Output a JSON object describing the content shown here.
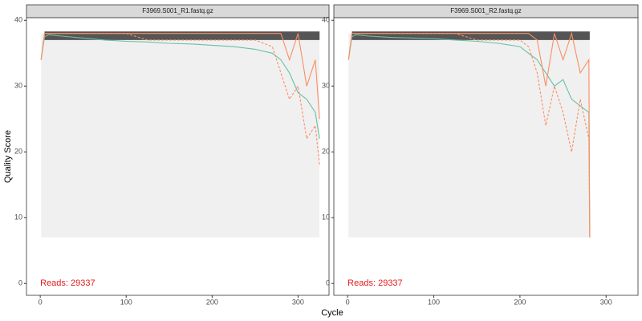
{
  "chart_data": [
    {
      "type": "line",
      "title": "F3969.S001_R1.fastq.gz",
      "xlabel": "Cycle",
      "ylabel": "Quality Score",
      "x": [
        1,
        5,
        10,
        25,
        50,
        75,
        100,
        125,
        150,
        175,
        200,
        225,
        250,
        270,
        280,
        290,
        300,
        310,
        320,
        325
      ],
      "series": [
        {
          "color": "#66c2a5",
          "dash": false,
          "values": [
            34,
            37.5,
            37.8,
            37.6,
            37.3,
            37,
            36.8,
            36.7,
            36.5,
            36.4,
            36.2,
            36,
            35.6,
            35,
            34,
            32,
            29,
            28,
            26,
            22
          ]
        },
        {
          "color": "#fc8d62",
          "dash": false,
          "values": [
            34,
            38,
            38,
            38,
            38,
            38,
            38,
            38,
            38,
            38,
            38,
            38,
            38,
            38,
            38,
            34,
            38,
            30,
            34,
            25
          ]
        },
        {
          "color": "#fc8d62",
          "dash": true,
          "values": [
            34,
            38,
            38,
            38,
            38,
            38,
            38,
            37,
            37,
            37,
            37,
            37,
            37,
            36,
            32,
            28,
            30,
            22,
            24,
            18
          ]
        }
      ],
      "annotation": "Reads:  29337",
      "annotation_color": "#e41a1c",
      "xlim": [
        -16,
        336
      ],
      "ylim": [
        -1.8,
        40.4
      ],
      "xticks": [
        0,
        100,
        200,
        300
      ],
      "yticks": [
        0,
        10,
        20,
        30,
        40
      ]
    },
    {
      "type": "line",
      "title": "F3969.S001_R2.fastq.gz",
      "x": [
        1,
        5,
        10,
        25,
        50,
        75,
        100,
        125,
        150,
        175,
        200,
        210,
        220,
        230,
        240,
        250,
        260,
        270,
        280,
        281
      ],
      "series": [
        {
          "color": "#66c2a5",
          "dash": false,
          "values": [
            34,
            37.5,
            37.8,
            37.6,
            37.4,
            37.3,
            37.2,
            37,
            36.8,
            36.5,
            36,
            35,
            34,
            32,
            30,
            31,
            28,
            27,
            26,
            7
          ]
        },
        {
          "color": "#fc8d62",
          "dash": false,
          "values": [
            34,
            38,
            38,
            38,
            38,
            38,
            38,
            38,
            38,
            38,
            38,
            38,
            37,
            30,
            38,
            34,
            38,
            32,
            34,
            7
          ]
        },
        {
          "color": "#fc8d62",
          "dash": true,
          "values": [
            34,
            38,
            38,
            38,
            38,
            38,
            38,
            38,
            37,
            37,
            37,
            36,
            32,
            24,
            30,
            26,
            20,
            28,
            22,
            7
          ]
        }
      ],
      "annotation": "Reads:  29337",
      "annotation_color": "#e41a1c",
      "xlim": [
        -16,
        337
      ],
      "ylim": [
        -1.8,
        40.4
      ],
      "xticks": [
        0,
        100,
        200,
        300
      ],
      "yticks": [
        0,
        10,
        20,
        30,
        40
      ]
    }
  ]
}
